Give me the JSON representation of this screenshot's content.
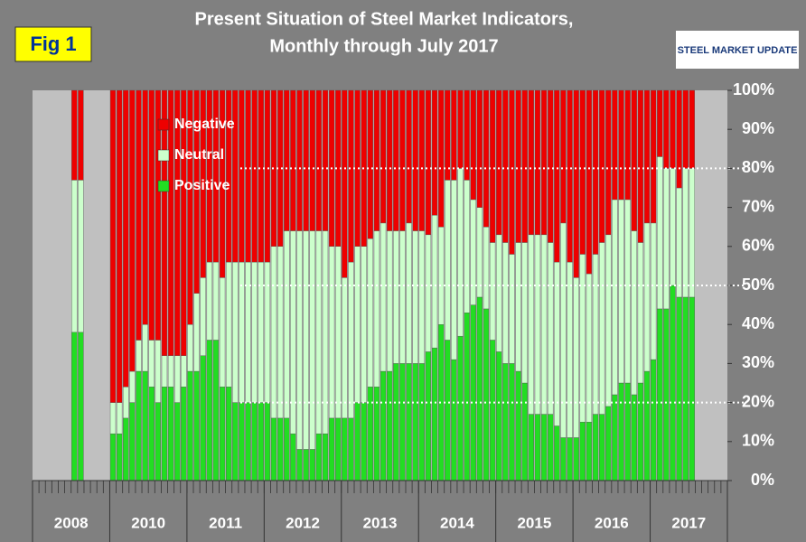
{
  "chart_data": {
    "type": "stacked-bar",
    "title": [
      "Present Situation of Steel Market Indicators,",
      "Monthly through July 2017"
    ],
    "figure_label": "Fig 1",
    "logo": "STEEL MARKET UPDATE",
    "year_labels": [
      "2008",
      "2010",
      "2011",
      "2012",
      "2013",
      "2014",
      "2015",
      "2016",
      "2017"
    ],
    "ylim": [
      0,
      100
    ],
    "yticks": [
      {
        "value": 0,
        "label": "0%"
      },
      {
        "value": 10,
        "label": "10%"
      },
      {
        "value": 20,
        "label": "20%"
      },
      {
        "value": 30,
        "label": "30%"
      },
      {
        "value": 40,
        "label": "40%"
      },
      {
        "value": 50,
        "label": "50%"
      },
      {
        "value": 60,
        "label": "60%"
      },
      {
        "value": 70,
        "label": "70%"
      },
      {
        "value": 80,
        "label": "80%"
      },
      {
        "value": 90,
        "label": "90%"
      },
      {
        "value": 100,
        "label": "100%"
      }
    ],
    "reference_lines": [
      20,
      50,
      80
    ],
    "series": [
      {
        "name": "Positive",
        "color": "#22dd22",
        "values": [
          null,
          null,
          null,
          null,
          null,
          null,
          38,
          38,
          null,
          null,
          null,
          null,
          12,
          12,
          16,
          20,
          28,
          28,
          24,
          20,
          24,
          24,
          20,
          24,
          28,
          28,
          32,
          36,
          36,
          24,
          24,
          20,
          20,
          20,
          20,
          20,
          20,
          16,
          16,
          16,
          12,
          8,
          8,
          8,
          12,
          12,
          16,
          16,
          16,
          16,
          20,
          20,
          24,
          24,
          28,
          28,
          30,
          30,
          30,
          30,
          30,
          33,
          34,
          40,
          36,
          31,
          37,
          43,
          45,
          47,
          44,
          36,
          33,
          30,
          30,
          28,
          25,
          17,
          17,
          17,
          17,
          14,
          11,
          11,
          11,
          15,
          15,
          17,
          17,
          19,
          22,
          25,
          25,
          22,
          25,
          28,
          31,
          44,
          44,
          50,
          47,
          47,
          47,
          null,
          null,
          null,
          null,
          null
        ]
      },
      {
        "name": "Neutral",
        "color": "#ccffcc",
        "values": [
          null,
          null,
          null,
          null,
          null,
          null,
          39,
          39,
          null,
          null,
          null,
          null,
          8,
          8,
          8,
          8,
          8,
          12,
          12,
          16,
          8,
          8,
          12,
          8,
          12,
          20,
          20,
          20,
          20,
          28,
          32,
          36,
          36,
          36,
          36,
          36,
          36,
          44,
          44,
          48,
          52,
          56,
          56,
          56,
          52,
          52,
          44,
          44,
          36,
          40,
          40,
          40,
          38,
          40,
          38,
          36,
          34,
          34,
          36,
          34,
          34,
          30,
          34,
          25,
          41,
          46,
          43,
          34,
          27,
          23,
          21,
          25,
          30,
          31,
          28,
          33,
          36,
          46,
          46,
          46,
          44,
          42,
          55,
          45,
          41,
          43,
          38,
          41,
          44,
          44,
          50,
          47,
          47,
          42,
          36,
          38,
          35,
          39,
          36,
          30,
          28,
          33,
          33,
          null,
          null,
          null,
          null,
          null
        ]
      },
      {
        "name": "Negative",
        "color": "#ee0000",
        "values": [
          null,
          null,
          null,
          null,
          null,
          null,
          23,
          23,
          null,
          null,
          null,
          null,
          80,
          80,
          76,
          72,
          64,
          60,
          64,
          64,
          68,
          68,
          68,
          68,
          60,
          52,
          48,
          44,
          44,
          48,
          44,
          44,
          44,
          44,
          44,
          44,
          44,
          40,
          40,
          36,
          36,
          36,
          36,
          36,
          36,
          36,
          40,
          40,
          48,
          44,
          40,
          40,
          38,
          36,
          34,
          36,
          36,
          36,
          34,
          36,
          36,
          37,
          32,
          35,
          23,
          23,
          20,
          23,
          28,
          30,
          35,
          39,
          37,
          39,
          42,
          39,
          39,
          37,
          37,
          37,
          39,
          44,
          34,
          44,
          48,
          42,
          47,
          42,
          39,
          37,
          28,
          28,
          28,
          36,
          39,
          34,
          34,
          17,
          20,
          20,
          25,
          20,
          20,
          null,
          null,
          null,
          null,
          null
        ]
      }
    ]
  }
}
